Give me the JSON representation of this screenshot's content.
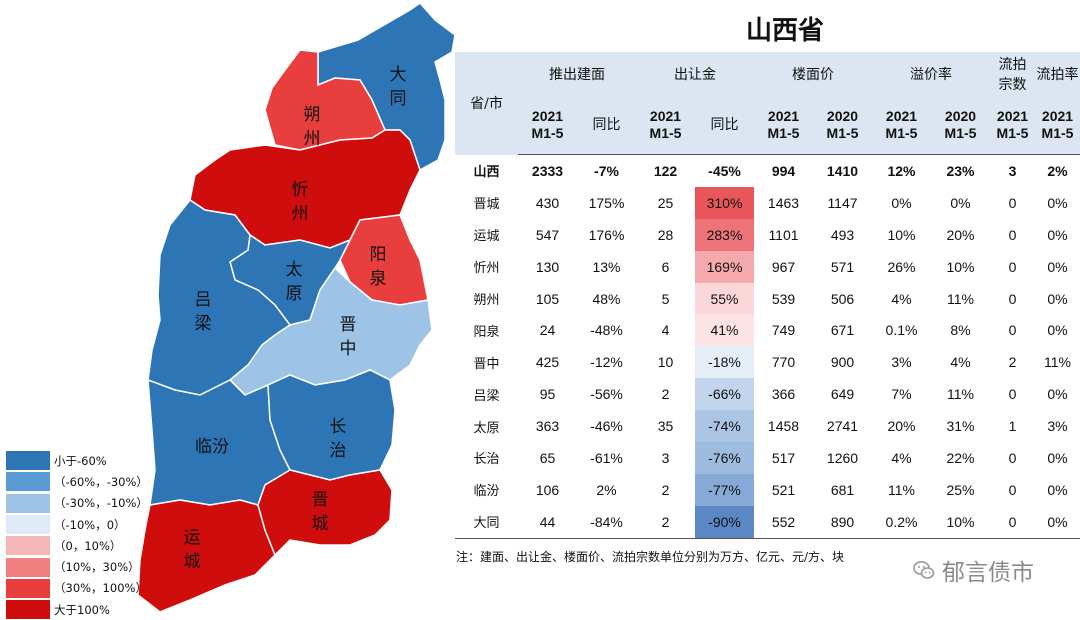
{
  "title": "山西省",
  "legend": [
    {
      "label": "小于-60%",
      "color": "#2e75b6"
    },
    {
      "label": "（-60%，-30%）",
      "color": "#5b9bd5"
    },
    {
      "label": "（-30%，-10%）",
      "color": "#9dc3e6"
    },
    {
      "label": "（-10%，0）",
      "color": "#deebf7"
    },
    {
      "label": "（0，10%）",
      "color": "#f4b6b6"
    },
    {
      "label": "（10%，30%）",
      "color": "#f08080"
    },
    {
      "label": "（30%，100%）",
      "color": "#e83e3e"
    },
    {
      "label": "大于100%",
      "color": "#d00d0d"
    }
  ],
  "map": {
    "regions": [
      {
        "name": "大同",
        "label": "大\n同",
        "color": "#2e75b6"
      },
      {
        "name": "朔州",
        "label": "朔\n州",
        "color": "#e83e3e"
      },
      {
        "name": "忻州",
        "label": "忻\n州",
        "color": "#d00d0d"
      },
      {
        "name": "阳泉",
        "label": "阳\n泉",
        "color": "#e83e3e"
      },
      {
        "name": "太原",
        "label": "太\n原",
        "color": "#2e75b6"
      },
      {
        "name": "吕梁",
        "label": "吕\n梁",
        "color": "#2e75b6"
      },
      {
        "name": "晋中",
        "label": "晋\n中",
        "color": "#9dc3e6"
      },
      {
        "name": "临汾",
        "label": "临汾",
        "color": "#2e75b6"
      },
      {
        "name": "长治",
        "label": "长\n治",
        "color": "#2e75b6"
      },
      {
        "name": "运城",
        "label": "运\n城",
        "color": "#d00d0d"
      },
      {
        "name": "晋城",
        "label": "晋\n城",
        "color": "#d00d0d"
      }
    ]
  },
  "table": {
    "header_groups": [
      "推出建面",
      "出让金",
      "楼面价",
      "溢价率",
      "流拍\n宗数",
      "流拍率"
    ],
    "row_header": "省/市",
    "subheaders": [
      "2021\nM1-5",
      "同比",
      "2021\nM1-5",
      "同比",
      "2021\nM1-5",
      "2020\nM1-5",
      "2021\nM1-5",
      "2020\nM1-5",
      "2021\nM1-5",
      "2021\nM1-5"
    ],
    "rows": [
      {
        "name": "山西",
        "cells": [
          "2333",
          "-7%",
          "122",
          "-45%",
          "994",
          "1410",
          "12%",
          "23%",
          "3",
          "2%"
        ],
        "heat": ""
      },
      {
        "name": "晋城",
        "cells": [
          "430",
          "175%",
          "25",
          "310%",
          "1463",
          "1147",
          "0%",
          "0%",
          "0",
          "0%"
        ],
        "heat": "#e8565c"
      },
      {
        "name": "运城",
        "cells": [
          "547",
          "176%",
          "28",
          "283%",
          "1101",
          "493",
          "10%",
          "20%",
          "0",
          "0%"
        ],
        "heat": "#ec7479"
      },
      {
        "name": "忻州",
        "cells": [
          "130",
          "13%",
          "6",
          "169%",
          "967",
          "571",
          "26%",
          "10%",
          "0",
          "0%"
        ],
        "heat": "#f4a9ac"
      },
      {
        "name": "朔州",
        "cells": [
          "105",
          "48%",
          "5",
          "55%",
          "539",
          "506",
          "4%",
          "11%",
          "0",
          "0%"
        ],
        "heat": "#fbd7d9"
      },
      {
        "name": "阳泉",
        "cells": [
          "24",
          "-48%",
          "4",
          "41%",
          "749",
          "671",
          "0.1%",
          "8%",
          "0",
          "0%"
        ],
        "heat": "#fde3e4"
      },
      {
        "name": "晋中",
        "cells": [
          "425",
          "-12%",
          "10",
          "-18%",
          "770",
          "900",
          "3%",
          "4%",
          "2",
          "11%"
        ],
        "heat": "#e6eef8"
      },
      {
        "name": "吕梁",
        "cells": [
          "95",
          "-56%",
          "2",
          "-66%",
          "366",
          "649",
          "7%",
          "11%",
          "0",
          "0%"
        ],
        "heat": "#c3d5ec"
      },
      {
        "name": "太原",
        "cells": [
          "363",
          "-46%",
          "35",
          "-74%",
          "1458",
          "2741",
          "20%",
          "31%",
          "1",
          "3%"
        ],
        "heat": "#adc5e5"
      },
      {
        "name": "长治",
        "cells": [
          "65",
          "-61%",
          "3",
          "-76%",
          "517",
          "1260",
          "4%",
          "22%",
          "0",
          "0%"
        ],
        "heat": "#9ebbe0"
      },
      {
        "name": "临汾",
        "cells": [
          "106",
          "2%",
          "2",
          "-77%",
          "521",
          "681",
          "11%",
          "25%",
          "0",
          "0%"
        ],
        "heat": "#86a9d7"
      },
      {
        "name": "大同",
        "cells": [
          "44",
          "-84%",
          "2",
          "-90%",
          "552",
          "890",
          "0.2%",
          "10%",
          "0",
          "0%"
        ],
        "heat": "#5b87c5"
      }
    ]
  },
  "note": "注：建面、出让金、楼面价、流拍宗数单位分别为万方、亿元、元/方、块",
  "watermark": "郁言债市",
  "chart_data": {
    "type": "table",
    "title": "山西省",
    "columns": [
      "推出建面 2021M1-5",
      "推出建面 同比",
      "出让金 2021M1-5",
      "出让金 同比",
      "楼面价 2021M1-5",
      "楼面价 2020M1-5",
      "溢价率 2021M1-5",
      "溢价率 2020M1-5",
      "流拍宗数 2021M1-5",
      "流拍率 2021M1-5"
    ],
    "rows": [
      "山西",
      "晋城",
      "运城",
      "忻州",
      "朔州",
      "阳泉",
      "晋中",
      "吕梁",
      "太原",
      "长治",
      "临汾",
      "大同"
    ],
    "map_metric": "出让金同比",
    "map_values": {
      "大同": -90,
      "朔州": 55,
      "忻州": 169,
      "阳泉": 41,
      "太原": -74,
      "吕梁": -66,
      "晋中": -18,
      "临汾": -77,
      "长治": -76,
      "运城": 283,
      "晋城": 310
    }
  }
}
